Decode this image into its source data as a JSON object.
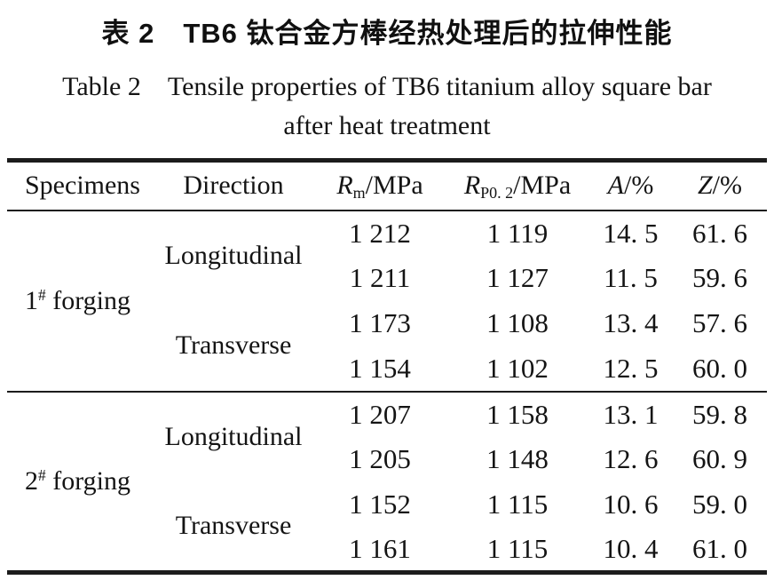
{
  "title": {
    "zh": "表 2　TB6 钛合金方棒经热处理后的拉伸性能",
    "en_line1": "Table 2　Tensile properties of TB6 titanium alloy square bar",
    "en_line2": "after heat treatment"
  },
  "table": {
    "headers": {
      "specimens": "Specimens",
      "direction": "Direction",
      "rm": {
        "symbol": "R",
        "sub": "m",
        "rest": "/MPa"
      },
      "rp": {
        "symbol": "R",
        "sub": "P0. 2",
        "rest": "/MPa"
      },
      "a": {
        "symbol": "A",
        "rest": "/%"
      },
      "z": {
        "symbol": "Z",
        "rest": "/%"
      }
    },
    "groups": [
      {
        "specimen": {
          "num": "1",
          "sup": "#",
          "suffix": " forging"
        },
        "directions": [
          {
            "label": "Longitudinal",
            "rows": [
              {
                "rm": "1 212",
                "rp": "1 119",
                "a": "14. 5",
                "z": "61. 6"
              },
              {
                "rm": "1 211",
                "rp": "1 127",
                "a": "11. 5",
                "z": "59. 6"
              }
            ]
          },
          {
            "label": "Transverse",
            "rows": [
              {
                "rm": "1 173",
                "rp": "1 108",
                "a": "13. 4",
                "z": "57. 6"
              },
              {
                "rm": "1 154",
                "rp": "1 102",
                "a": "12. 5",
                "z": "60. 0"
              }
            ]
          }
        ]
      },
      {
        "specimen": {
          "num": "2",
          "sup": "#",
          "suffix": " forging"
        },
        "directions": [
          {
            "label": "Longitudinal",
            "rows": [
              {
                "rm": "1 207",
                "rp": "1 158",
                "a": "13. 1",
                "z": "59. 8"
              },
              {
                "rm": "1 205",
                "rp": "1 148",
                "a": "12. 6",
                "z": "60. 9"
              }
            ]
          },
          {
            "label": "Transverse",
            "rows": [
              {
                "rm": "1 152",
                "rp": "1 115",
                "a": "10. 6",
                "z": "59. 0"
              },
              {
                "rm": "1 161",
                "rp": "1 115",
                "a": "10. 4",
                "z": "61. 0"
              }
            ]
          }
        ]
      }
    ]
  },
  "colors": {
    "background": "#ffffff",
    "text": "#141414",
    "rule": "#1c1c1c"
  }
}
